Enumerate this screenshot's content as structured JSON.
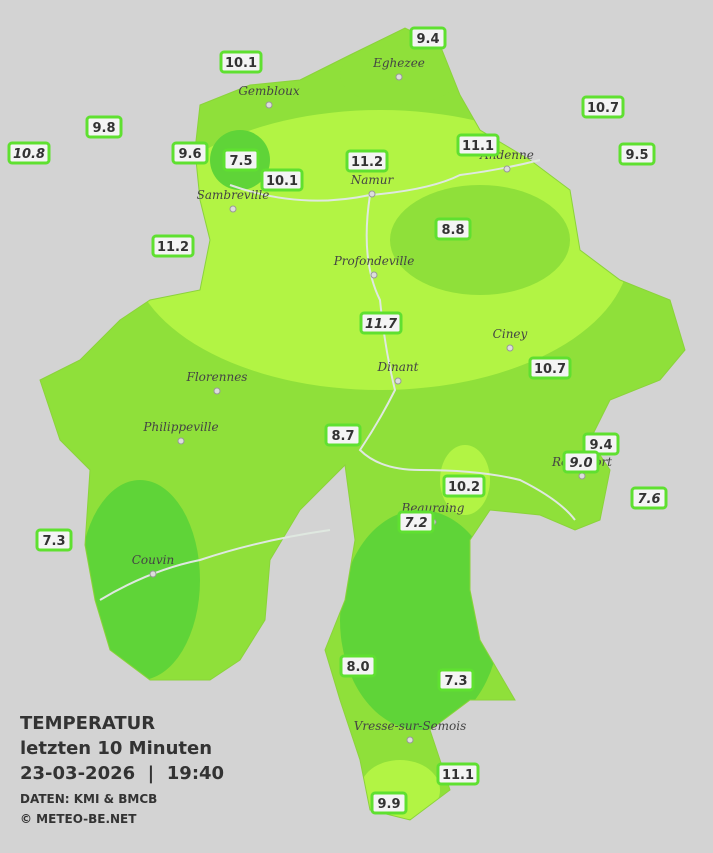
{
  "legend": {
    "title": "TEMPERATUR",
    "period": "letzten 10 Minuten",
    "datetime": "23-03-2026  |  19:40",
    "source": "DATEN: KMI & BMCB",
    "copyright": "© METEO-BE.NET"
  },
  "towns": [
    "Eghezee",
    "Gembloux",
    "Andenne",
    "Namur",
    "Sambreville",
    "Profondeville",
    "Ciney",
    "Dinant",
    "Florennes",
    "Philippeville",
    "Rochefort",
    "Beauraing",
    "Couvin",
    "Vresse-sur-Semois"
  ],
  "stations": [
    {
      "value": "9.4"
    },
    {
      "value": "10.1"
    },
    {
      "value": "9.8"
    },
    {
      "value": "10.8"
    },
    {
      "value": "9.6"
    },
    {
      "value": "7.5"
    },
    {
      "value": "10.1"
    },
    {
      "value": "11.2"
    },
    {
      "value": "11.1"
    },
    {
      "value": "10.7"
    },
    {
      "value": "9.5"
    },
    {
      "value": "8.8"
    },
    {
      "value": "11.2"
    },
    {
      "value": "11.7"
    },
    {
      "value": "10.7"
    },
    {
      "value": "8.7"
    },
    {
      "value": "9.4"
    },
    {
      "value": "9.0"
    },
    {
      "value": "10.2"
    },
    {
      "value": "7.6"
    },
    {
      "value": "7.2"
    },
    {
      "value": "7.3"
    },
    {
      "value": "8.0"
    },
    {
      "value": "7.3"
    },
    {
      "value": "11.1"
    },
    {
      "value": "9.9"
    }
  ]
}
